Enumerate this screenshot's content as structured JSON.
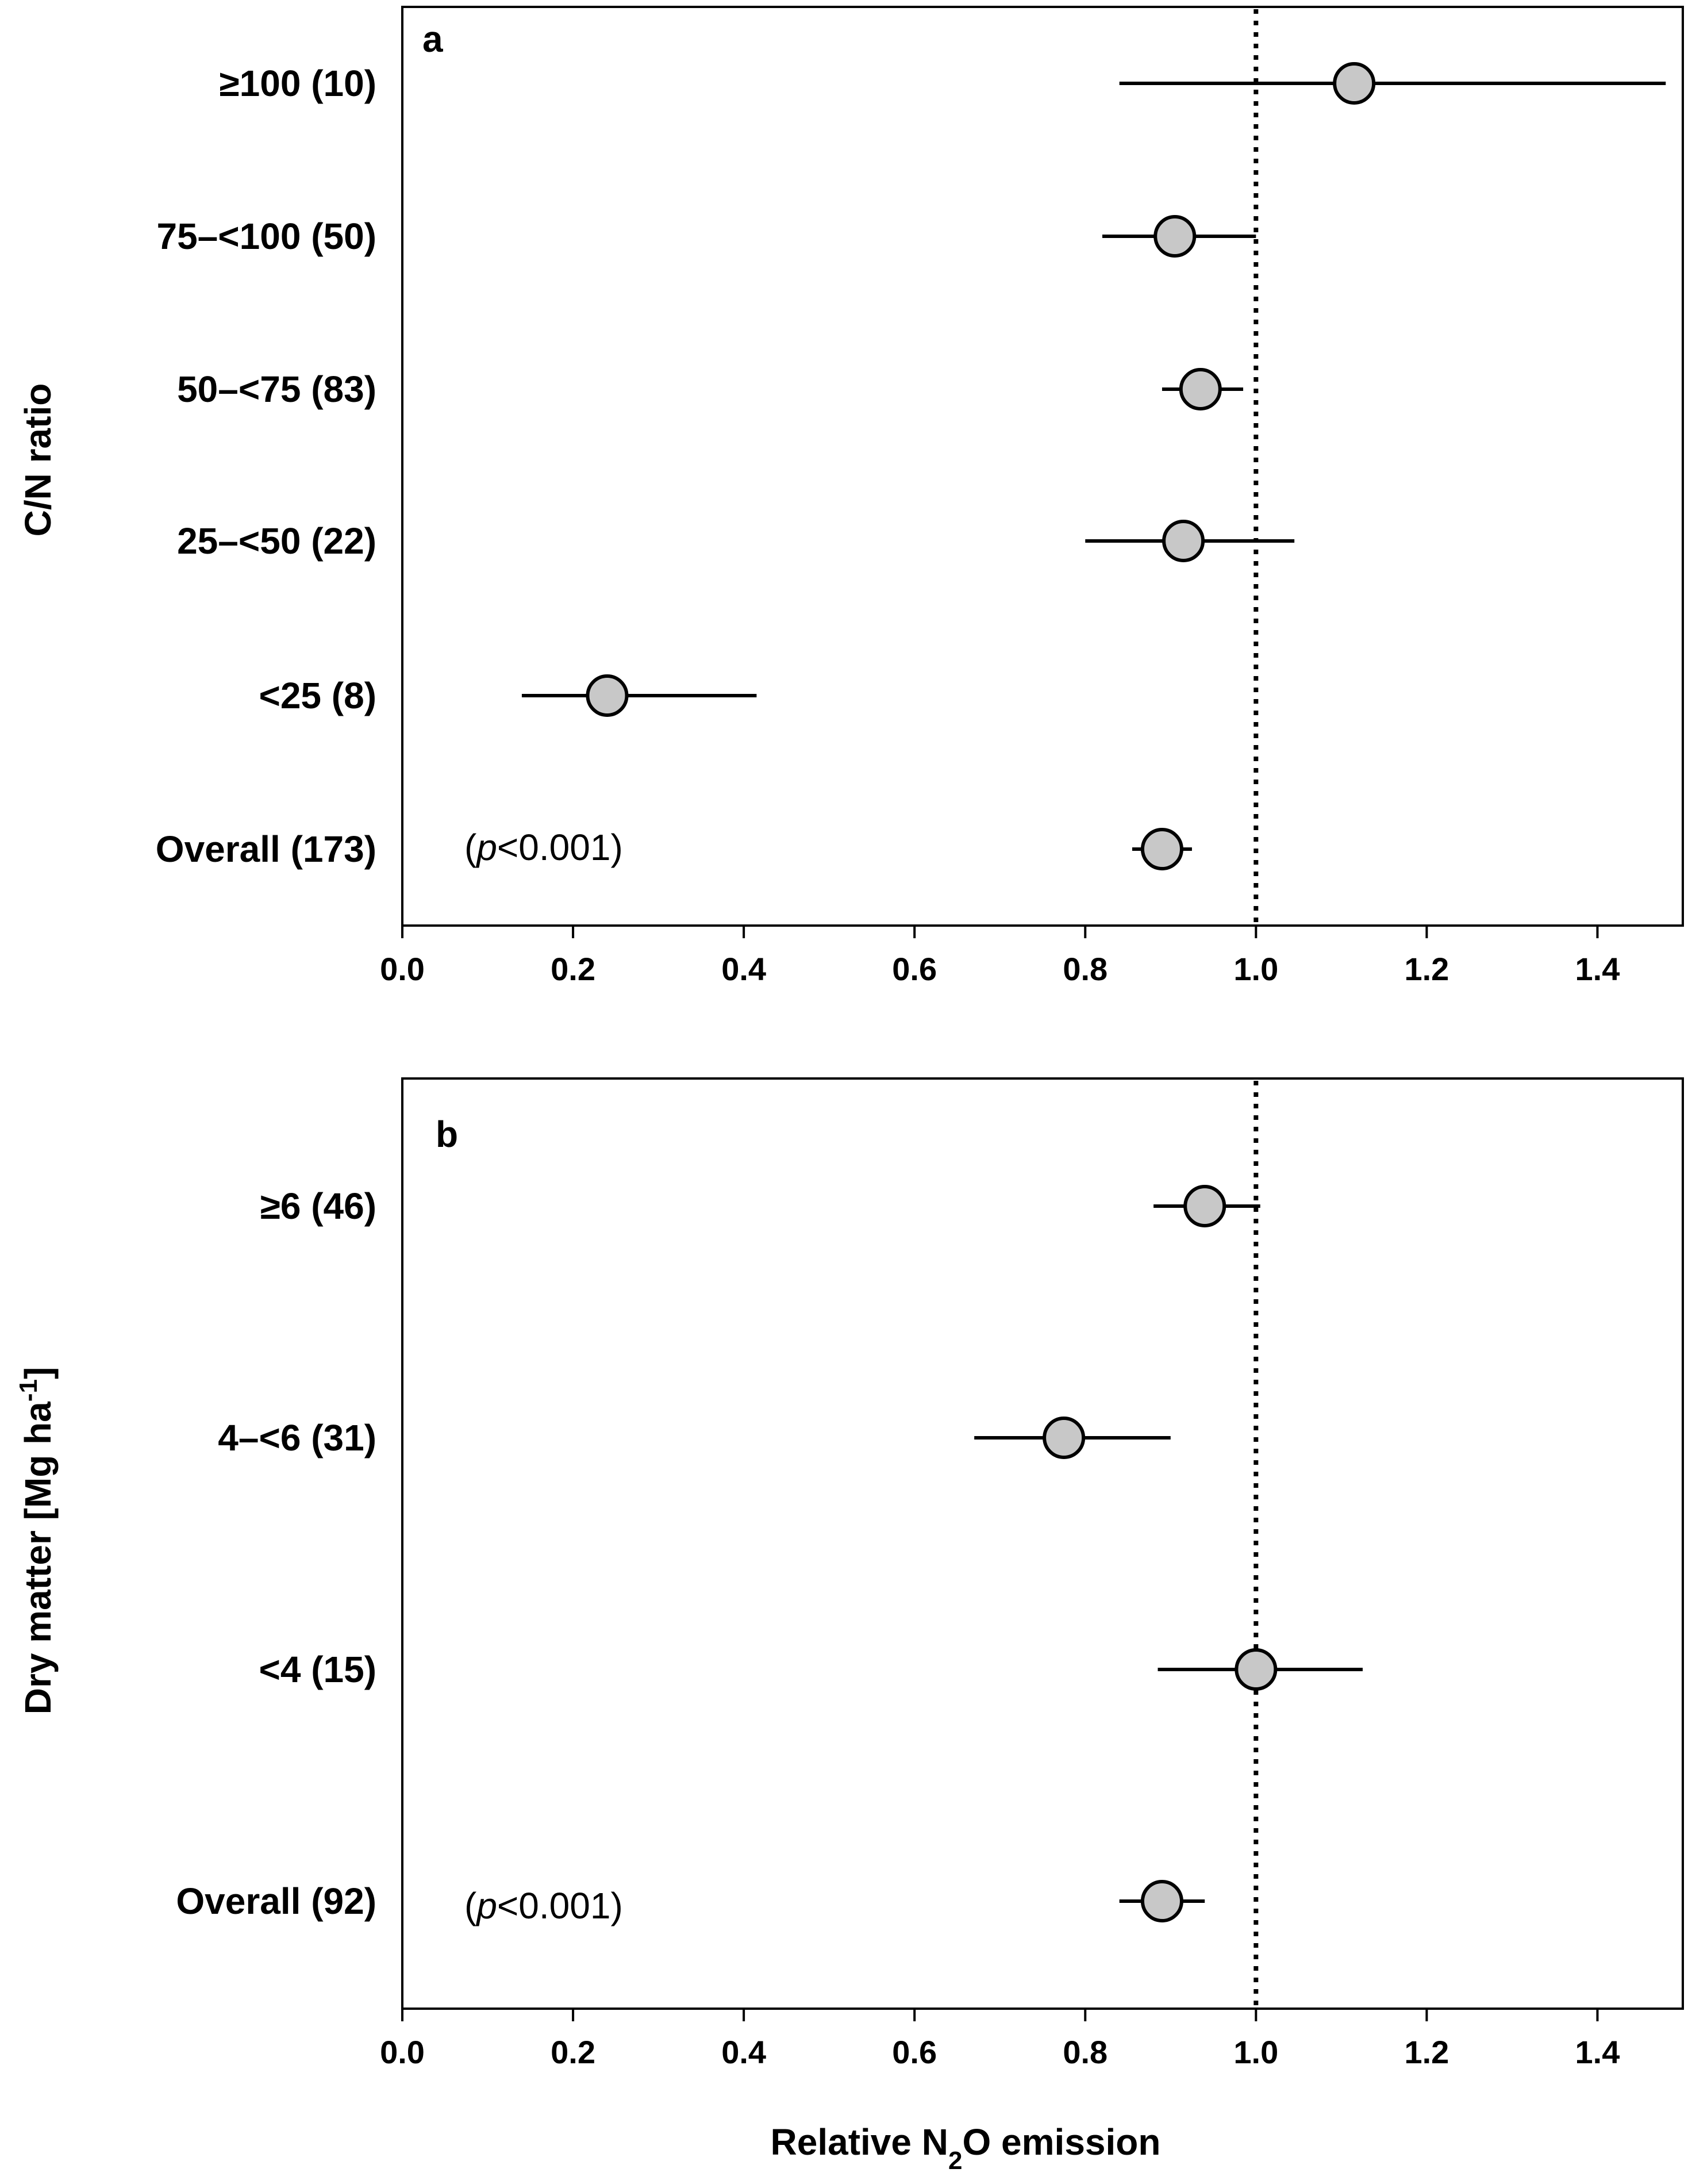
{
  "chart_data": [
    {
      "type": "forest",
      "panel": "a",
      "ylabel": "C/N ratio",
      "xlabel": "",
      "xlim": [
        0.0,
        1.5
      ],
      "xticks": [
        "0.0",
        "0.2",
        "0.4",
        "0.6",
        "0.8",
        "1.0",
        "1.2",
        "1.4"
      ],
      "reference_line": 1.0,
      "p_text": {
        "open": "(",
        "p": "p",
        "rest": "<0.001)"
      },
      "rows": [
        {
          "label": "≥100 (10)",
          "value": 1.115,
          "ci": [
            0.84,
            1.48
          ]
        },
        {
          "label": "75–<100 (50)",
          "value": 0.905,
          "ci": [
            0.82,
            1.0
          ]
        },
        {
          "label": "50–<75 (83)",
          "value": 0.935,
          "ci": [
            0.89,
            0.985
          ]
        },
        {
          "label": "25–<50 (22)",
          "value": 0.915,
          "ci": [
            0.8,
            1.045
          ]
        },
        {
          "label": "<25 (8)",
          "value": 0.24,
          "ci": [
            0.14,
            0.415
          ]
        },
        {
          "label": "Overall (173)",
          "value": 0.89,
          "ci": [
            0.855,
            0.925
          ]
        }
      ]
    },
    {
      "type": "forest",
      "panel": "b",
      "ylabel": "Dry matter [Mg ha",
      "ylabel_sup": "-1",
      "ylabel_end": "]",
      "xlabel_parts": {
        "pre": "Relative N",
        "sub": "2",
        "post": "O emission"
      },
      "xlim": [
        0.0,
        1.5
      ],
      "xticks": [
        "0.0",
        "0.2",
        "0.4",
        "0.6",
        "0.8",
        "1.0",
        "1.2",
        "1.4"
      ],
      "reference_line": 1.0,
      "p_text": {
        "open": "(",
        "p": "p",
        "rest": "<0.001)"
      },
      "rows": [
        {
          "label": "≥6 (46)",
          "value": 0.94,
          "ci": [
            0.88,
            1.005
          ]
        },
        {
          "label": "4–<6 (31)",
          "value": 0.775,
          "ci": [
            0.67,
            0.9
          ]
        },
        {
          "label": "<4  (15)",
          "value": 1.0,
          "ci": [
            0.885,
            1.125
          ]
        },
        {
          "label": "Overall (92)",
          "value": 0.89,
          "ci": [
            0.84,
            0.94
          ]
        }
      ]
    }
  ]
}
